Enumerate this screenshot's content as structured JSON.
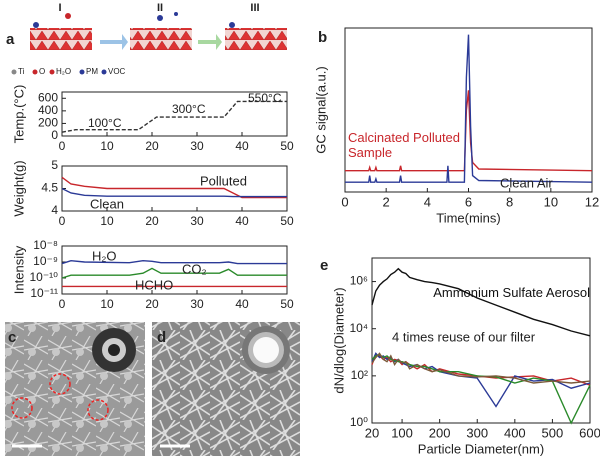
{
  "panel_labels": [
    "a",
    "b",
    "c",
    "d",
    "e"
  ],
  "schematic": {
    "steps": [
      "I",
      "II",
      "III"
    ],
    "legend": [
      "Ti",
      "O",
      "H₂O",
      "PM",
      "VOC"
    ]
  },
  "chart_data": [
    {
      "type": "line",
      "ylabel": "Temp.(°C)",
      "x": [
        0,
        3,
        17,
        21,
        36,
        39,
        50
      ],
      "xlim": [
        0,
        50
      ],
      "xticks": [
        0,
        10,
        20,
        30,
        40,
        50
      ],
      "ylim": [
        0,
        700
      ],
      "yticks": [
        0,
        200,
        400,
        600
      ],
      "series": [
        {
          "color": "#333333",
          "dash": true,
          "values": [
            60,
            100,
            100,
            300,
            300,
            550,
            550
          ]
        }
      ],
      "annotations": [
        {
          "text": "100°C"
        },
        {
          "text": "300°C"
        },
        {
          "text": "550°C"
        }
      ]
    },
    {
      "type": "line",
      "ylabel": "Weight(g)",
      "x": [
        0,
        2,
        5,
        10,
        36,
        38,
        40,
        50
      ],
      "xlim": [
        0,
        50
      ],
      "xticks": [
        0,
        10,
        20,
        30,
        40,
        50
      ],
      "ylim": [
        4,
        5
      ],
      "yticks": [
        4,
        4.5,
        5
      ],
      "series": [
        {
          "name": "Polluted",
          "color": "#c8262b",
          "values": [
            4.75,
            4.6,
            4.55,
            4.5,
            4.5,
            4.4,
            4.3,
            4.3
          ]
        },
        {
          "name": "Clean",
          "color": "#2b3a97",
          "values": [
            4.5,
            4.4,
            4.35,
            4.33,
            4.33,
            4.32,
            4.32,
            4.32
          ]
        }
      ]
    },
    {
      "type": "line",
      "ylabel": "Intensity",
      "log": true,
      "x": [
        0,
        2,
        5,
        15,
        18,
        20,
        22,
        30,
        35,
        37,
        39,
        45,
        50
      ],
      "xlim": [
        0,
        50
      ],
      "xticks": [
        0,
        10,
        20,
        30,
        40,
        50
      ],
      "ylim": [
        1e-11,
        1e-08
      ],
      "yticks": [
        {
          "value": 1e-11,
          "label": "10⁻¹¹"
        },
        {
          "value": 1e-10,
          "label": "10⁻¹⁰"
        },
        {
          "value": 1e-09,
          "label": "10⁻⁹"
        },
        {
          "value": 1e-08,
          "label": "10⁻⁸"
        }
      ],
      "series": [
        {
          "name": "H₂O",
          "color": "#2b3a97",
          "values": [
            8e-10,
            1.2e-09,
            1e-09,
            9e-10,
            1.2e-09,
            1.1e-09,
            9e-10,
            9e-10,
            9e-10,
            1e-09,
            8e-10,
            8e-10,
            8e-10
          ]
        },
        {
          "name": "CO₂",
          "color": "#2a8a2a",
          "values": [
            1e-10,
            1.5e-10,
            1.5e-10,
            1.5e-10,
            2e-10,
            4e-10,
            2e-10,
            2e-10,
            2e-10,
            3.5e-10,
            1.5e-10,
            1.5e-10,
            1.5e-10
          ]
        },
        {
          "name": "HCHO",
          "color": "#c8262b",
          "values": [
            3e-11,
            3e-11,
            3e-11,
            3e-11,
            3e-11,
            3e-11,
            3e-11,
            3e-11,
            3e-11,
            3e-11,
            3e-11,
            3e-11,
            3e-11
          ]
        }
      ]
    },
    {
      "type": "line",
      "ylabel": "GC signal(a.u.)",
      "xlabel": "Time(mins)",
      "x": [
        0,
        1.15,
        1.2,
        1.25,
        1.45,
        1.5,
        1.55,
        2.65,
        2.7,
        2.75,
        4.95,
        5,
        5.05,
        5.8,
        5.9,
        6,
        6.1,
        6.2,
        6.5,
        12
      ],
      "xlim": [
        0,
        12
      ],
      "xticks": [
        0,
        2,
        4,
        6,
        8,
        10,
        12
      ],
      "ylim": [
        0,
        1
      ],
      "series": [
        {
          "name": "Calcinated Polluted Sample",
          "color": "#c8262b",
          "values": [
            0.13,
            0.13,
            0.15,
            0.13,
            0.13,
            0.15,
            0.13,
            0.13,
            0.16,
            0.13,
            0.13,
            0.13,
            0.13,
            0.13,
            0.5,
            0.62,
            0.3,
            0.18,
            0.14,
            0.13
          ]
        },
        {
          "name": "Clean Air",
          "color": "#2b3a97",
          "values": [
            0.06,
            0.06,
            0.1,
            0.06,
            0.06,
            0.08,
            0.06,
            0.06,
            0.1,
            0.06,
            0.06,
            0.16,
            0.06,
            0.06,
            0.7,
            0.96,
            0.4,
            0.1,
            0.07,
            0.06
          ]
        }
      ]
    },
    {
      "type": "line",
      "ylabel": "dN/dlog(Diameter)",
      "xlabel": "Particle Diameter(nm)",
      "log": true,
      "x": [
        20,
        30,
        40,
        50,
        60,
        70,
        80,
        90,
        100,
        110,
        120,
        140,
        160,
        180,
        200,
        250,
        300,
        350,
        400,
        450,
        500,
        550,
        600
      ],
      "xlim": [
        20,
        600
      ],
      "xticks": [
        20,
        100,
        200,
        300,
        400,
        500,
        600
      ],
      "ylim": [
        1,
        10000000.0
      ],
      "yticks": [
        {
          "value": 1,
          "label": "10⁰"
        },
        {
          "value": 100,
          "label": "10²"
        },
        {
          "value": 10000,
          "label": "10⁴"
        },
        {
          "value": 1000000,
          "label": "10⁶"
        }
      ],
      "series": [
        {
          "name": "Ammonium Sulfate Aerosol",
          "color": "#111111",
          "values": [
            100000,
            400000,
            700000,
            1000000,
            1300000,
            2000000,
            2500000,
            3500000,
            2500000,
            2200000,
            1500000,
            1200000,
            1000000,
            900000,
            800000,
            500000,
            200000,
            100000,
            50000,
            25000,
            15000,
            8000,
            5000
          ]
        },
        {
          "color": "#c8262b",
          "values": [
            300,
            800,
            700,
            500,
            600,
            400,
            500,
            450,
            300,
            400,
            300,
            200,
            300,
            150,
            200,
            120,
            100,
            80,
            90,
            100,
            60,
            80,
            40
          ]
        },
        {
          "color": "#2b3a97",
          "values": [
            400,
            900,
            600,
            700,
            500,
            600,
            400,
            500,
            350,
            300,
            250,
            300,
            200,
            250,
            150,
            100,
            80,
            5,
            100,
            60,
            70,
            30,
            50
          ]
        },
        {
          "color": "#2a8a2a",
          "values": [
            500,
            700,
            800,
            600,
            700,
            500,
            450,
            400,
            400,
            350,
            300,
            250,
            250,
            200,
            150,
            150,
            100,
            90,
            50,
            80,
            60,
            1,
            40
          ]
        },
        {
          "color": "#7a5a3a",
          "values": [
            350,
            600,
            900,
            500,
            400,
            700,
            300,
            500,
            350,
            400,
            200,
            300,
            200,
            150,
            180,
            100,
            90,
            100,
            80,
            50,
            60,
            50,
            60
          ]
        }
      ],
      "annotations": [
        {
          "text": "4 times reuse of our filter",
          "color": "#c8262b"
        }
      ]
    }
  ]
}
